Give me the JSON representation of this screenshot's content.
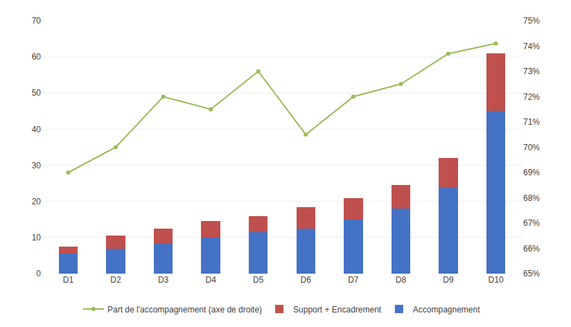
{
  "chart_data": {
    "type": "bar",
    "stacked": true,
    "categories": [
      "D1",
      "D2",
      "D3",
      "D4",
      "D5",
      "D6",
      "D7",
      "D8",
      "D9",
      "D10"
    ],
    "series": [
      {
        "name": "Accompagnement",
        "color": "#4472C4",
        "values": [
          5.5,
          7.0,
          8.5,
          10.0,
          11.5,
          12.5,
          15.0,
          18.0,
          24.0,
          45.0
        ]
      },
      {
        "name": "Support + Encadrement",
        "color": "#C0504D",
        "values": [
          2.0,
          3.5,
          4.0,
          4.5,
          4.5,
          6.0,
          6.0,
          6.5,
          8.0,
          16.0
        ]
      },
      {
        "name": "Part de l'accompagnement (axe de droite)",
        "type": "line",
        "axis": "y2",
        "color": "#9BBB59",
        "marker": "circle",
        "values": [
          0.69,
          0.7,
          0.72,
          0.715,
          0.73,
          0.705,
          0.72,
          0.725,
          0.737,
          0.741
        ]
      }
    ],
    "ylim": [
      0,
      70
    ],
    "yticks": [
      0,
      10,
      20,
      30,
      40,
      50,
      60,
      70
    ],
    "y2lim": [
      0.65,
      0.75
    ],
    "y2ticks": [
      {
        "value": 0.65,
        "label": "65%"
      },
      {
        "value": 0.66,
        "label": "66%"
      },
      {
        "value": 0.67,
        "label": "67%"
      },
      {
        "value": 0.68,
        "label": "68%"
      },
      {
        "value": 0.69,
        "label": "69%"
      },
      {
        "value": 0.7,
        "label": "70%"
      },
      {
        "value": 0.71,
        "label": "71%"
      },
      {
        "value": 0.72,
        "label": "72%"
      },
      {
        "value": 0.73,
        "label": "73%"
      },
      {
        "value": 0.74,
        "label": "74%"
      },
      {
        "value": 0.75,
        "label": "75%"
      }
    ],
    "grid": true,
    "legend": "bottom"
  }
}
